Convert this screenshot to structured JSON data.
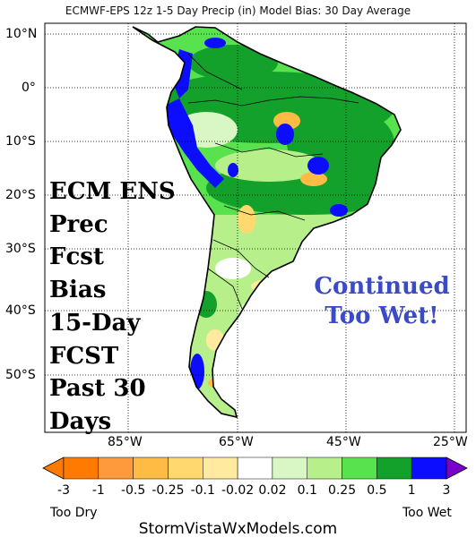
{
  "title": "ECMWF-EPS 12z 1-5 Day Precip (in) Model Bias: 30 Day Average",
  "lat_labels": [
    "10°N",
    "0°",
    "10°S",
    "20°S",
    "30°S",
    "40°S",
    "50°S"
  ],
  "lon_labels": [
    "85°W",
    "65°W",
    "45°W",
    "25°W"
  ],
  "overlay_left": [
    "ECM ENS",
    "Prec",
    "Fcst",
    "Bias",
    "15-Day",
    "FCST",
    "Past 30",
    "Days"
  ],
  "overlay_right": [
    "Continued",
    "Too Wet!"
  ],
  "colorbar": {
    "labels": [
      "-3",
      "-1",
      "-0.5",
      "-0.25",
      "-0.1",
      "-0.02",
      "0.02",
      "0.1",
      "0.25",
      "0.5",
      "1",
      "3"
    ],
    "colors": [
      "#ff7a00",
      "#ff9a3c",
      "#ffbb44",
      "#ffd870",
      "#ffeaa0",
      "#ffffff",
      "#d8f7c4",
      "#b7f08a",
      "#57e24e",
      "#13a12b",
      "#0c0cff"
    ],
    "low_end_color": "#ff7a00",
    "high_end_color": "#7a00cc",
    "left_label": "Too Dry",
    "right_label": "Too Wet"
  },
  "site": "StormVistaWxModels.com"
}
